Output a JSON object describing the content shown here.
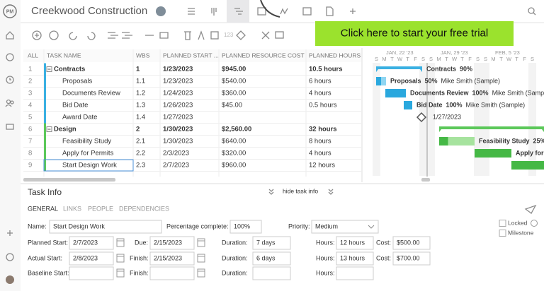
{
  "header": {
    "title": "Creekwood Construction",
    "cta": "Click here to start your free trial"
  },
  "toolbar": {
    "zoom": "123"
  },
  "grid": {
    "columns": [
      "ALL",
      "TASK NAME",
      "WBS",
      "PLANNED START ...",
      "PLANNED RESOURCE COST",
      "PLANNED HOURS"
    ],
    "rows": [
      [
        "1",
        "Contracts",
        "1",
        "1/23/2023",
        "$945.00",
        "10.5 hours"
      ],
      [
        "2",
        "Proposals",
        "1.1",
        "1/23/2023",
        "$540.00",
        "6 hours"
      ],
      [
        "3",
        "Documents Review",
        "1.2",
        "1/24/2023",
        "$360.00",
        "4 hours"
      ],
      [
        "4",
        "Bid Date",
        "1.3",
        "1/26/2023",
        "$45.00",
        "0.5 hours"
      ],
      [
        "5",
        "Award Date",
        "1.4",
        "1/27/2023",
        null,
        null
      ],
      [
        "6",
        "Design",
        "2",
        "1/30/2023",
        "$2,560.00",
        "32 hours"
      ],
      [
        "7",
        "Feasibility Study",
        "2.1",
        "1/30/2023",
        "$640.00",
        "8 hours"
      ],
      [
        "8",
        "Apply for Permits",
        "2.2",
        "2/3/2023",
        "$320.00",
        "4 hours"
      ],
      [
        "9",
        "Start Design Work",
        "2.3",
        "2/7/2023",
        "$960.00",
        "12 hours"
      ]
    ]
  },
  "gantt": {
    "weeks": [
      "JAN, 22 '23",
      "JAN, 29 '23",
      "FEB, 5 '23"
    ],
    "days": [
      "S",
      "M",
      "T",
      "W",
      "T",
      "F",
      "S"
    ],
    "rows": [
      {
        "label": "Contracts",
        "percent": "90%"
      },
      {
        "label": "Proposals",
        "percent": "50%",
        "resource": "Mike Smith (Sample)"
      },
      {
        "label": "Documents Review",
        "percent": "100%",
        "resource": "Mike Smith (Sample)"
      },
      {
        "label": "Bid Date",
        "percent": "100%",
        "resource": "Mike Smith (Sample)"
      },
      {
        "date": "1/27/2023"
      },
      null,
      {
        "label": "Feasibility Study",
        "percent": "25%"
      },
      {
        "label": "Apply for Permits"
      },
      null
    ]
  },
  "task_info": {
    "title": "Task Info",
    "toggle": "hide task info",
    "tabs": [
      "GENERAL",
      "LINKS",
      "PEOPLE",
      "DEPENDENCIES"
    ],
    "form": [
      [
        {
          "label": "Name:",
          "value": "Start Design Work"
        },
        {
          "label": "Percentage complete:",
          "value": "100%"
        },
        {
          "label": "Priority:",
          "value": "Medium"
        }
      ],
      [
        {
          "label": "Planned Start:",
          "value": "2/7/2023"
        },
        {
          "label": "Due:",
          "value": "2/15/2023"
        },
        {
          "label": "Duration:",
          "value": "7 days"
        },
        {
          "label": "Hours:",
          "value": "12 hours"
        },
        {
          "label": "Cost:",
          "value": "$500.00"
        }
      ],
      [
        {
          "label": "Actual Start:",
          "value": "2/8/2023"
        },
        {
          "label": "Finish:",
          "value": "2/15/2023"
        },
        {
          "label": "Duration:",
          "value": "6 days"
        },
        {
          "label": "Hours:",
          "value": "13 hours"
        },
        {
          "label": "Cost:",
          "value": "$700.00"
        }
      ],
      [
        {
          "label": "Baseline Start:"
        },
        {
          "label": "Finish:"
        },
        {
          "label": "Duration:"
        },
        {
          "label": "Hours:"
        }
      ]
    ],
    "checks": [
      "Locked",
      "Milestone"
    ]
  }
}
